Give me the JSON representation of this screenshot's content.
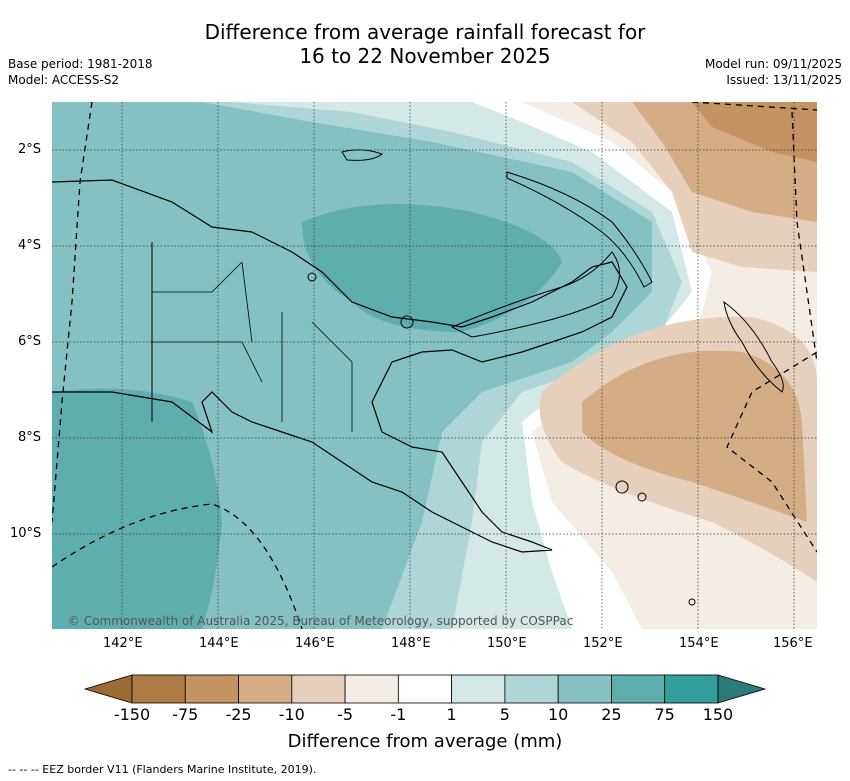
{
  "title": {
    "line1": "Difference from average rainfall forecast for",
    "line2": "16 to 22 November 2025"
  },
  "meta_left": {
    "base_period": "Base period: 1981-2018",
    "model": "Model: ACCESS-S2"
  },
  "meta_right": {
    "model_run": "Model run: 09/11/2025",
    "issued": "Issued: 13/11/2025"
  },
  "map": {
    "lat_ticks": [
      "2°S",
      "4°S",
      "6°S",
      "8°S",
      "10°S"
    ],
    "lon_ticks": [
      "142°E",
      "144°E",
      "146°E",
      "148°E",
      "150°E",
      "152°E",
      "154°E",
      "156°E"
    ],
    "copyright": "© Commonwealth of Australia 2025, Bureau of Meteorology, supported by COSPPac",
    "eez_legend": "-- -- -- EEZ border V11 (Flanders Marine Institute, 2019)."
  },
  "colorbar": {
    "title": "Difference from average (mm)",
    "labels": [
      "-150",
      "-75",
      "-25",
      "-10",
      "-5",
      "-1",
      "1",
      "5",
      "10",
      "25",
      "75",
      "150"
    ],
    "colors": {
      "below_min": "#9c6a33",
      "b1": "#b07a45",
      "b2": "#c39462",
      "b3": "#d4ad87",
      "b4": "#e6cfbb",
      "b5": "#f3ede6",
      "b6": "#ffffff",
      "b7": "#d5e8e8",
      "b8": "#afd6d6",
      "b9": "#86c1c1",
      "b10": "#5eaeae",
      "b11": "#339e9b",
      "above_max": "#2a7b79"
    }
  }
}
